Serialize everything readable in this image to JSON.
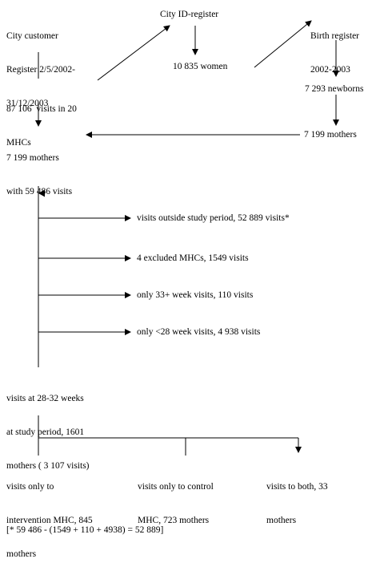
{
  "sources": {
    "city_customer": [
      "City customer",
      "Register 2/5/2002-",
      "31/12/2003"
    ],
    "city_id": "City ID-register",
    "birth": [
      "Birth register",
      "2002-2003"
    ]
  },
  "counts": {
    "visits": [
      "87 106  visits in 20",
      "MHCs"
    ],
    "women": "10 835 women",
    "newborns": "7 293 newborns",
    "mothers_right": "7 199 mothers",
    "mothers_main": [
      "7 199 mothers",
      "with 59 486 visits"
    ]
  },
  "exclusions": [
    "visits outside study period, 52 889 visits*",
    "4 excluded MHCs, 1549 visits",
    "only 33+ week visits, 110 visits",
    "only <28 week visits, 4 938 visits"
  ],
  "study": [
    "visits at 28-32 weeks",
    "at study period, 1601",
    "mothers ( 3 107 visits)"
  ],
  "groups": {
    "intervention": [
      "visits only to",
      "intervention MHC, 845",
      "mothers"
    ],
    "control": [
      "visits only to control",
      "MHC, 723 mothers"
    ],
    "both": [
      "visits to both, 33",
      "mothers"
    ]
  },
  "footnote": "[* 59 486 - (1549 + 110 + 4938) = 52 889]"
}
